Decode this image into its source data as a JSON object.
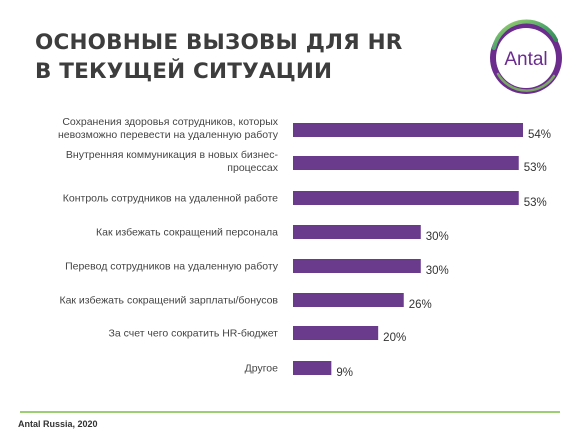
{
  "title": {
    "line1": "ОСНОВНЫЕ ВЫЗОВЫ ДЛЯ HR",
    "line2": "В ТЕКУЩЕЙ СИТУАЦИИ"
  },
  "logo": {
    "text": "Antal",
    "icon": "antal-logo-ring"
  },
  "footer": {
    "source": "Antal Russia, 2020"
  },
  "colors": {
    "bar": "#6a3a8c",
    "accent_green": "#9bcf72",
    "logo_purple": "#6b2c8e"
  },
  "chart_data": {
    "type": "bar",
    "orientation": "horizontal",
    "categories": [
      [
        "Сохранения здоровья сотрудников, которых",
        "невозможно перевести на удаленную работу"
      ],
      [
        "Внутренняя коммуникация в новых бизнес-",
        "процессах"
      ],
      [
        "Контроль сотрудников на удаленной работе"
      ],
      [
        "Как избежать сокращений персонала"
      ],
      [
        "Перевод сотрудников на удаленную работу"
      ],
      [
        "Как избежать сокращений зарплаты/бонусов"
      ],
      [
        "За счет чего сократить HR-бюджет"
      ],
      [
        "Другое"
      ]
    ],
    "values": [
      54,
      53,
      53,
      30,
      30,
      26,
      20,
      9
    ],
    "value_labels": [
      "54%",
      "53%",
      "53%",
      "30%",
      "30%",
      "26%",
      "20%",
      "9%"
    ],
    "unit": "%",
    "xlim": [
      0,
      54
    ],
    "grid": false,
    "legend": "none"
  }
}
